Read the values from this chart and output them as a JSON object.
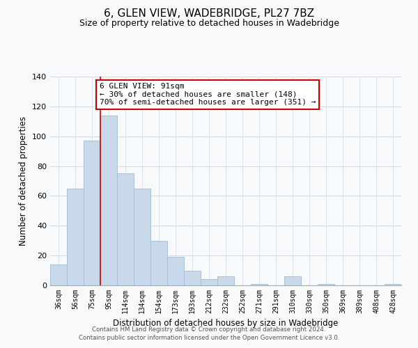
{
  "title": "6, GLEN VIEW, WADEBRIDGE, PL27 7BZ",
  "subtitle": "Size of property relative to detached houses in Wadebridge",
  "xlabel": "Distribution of detached houses by size in Wadebridge",
  "ylabel": "Number of detached properties",
  "bins": [
    "36sqm",
    "56sqm",
    "75sqm",
    "95sqm",
    "114sqm",
    "134sqm",
    "154sqm",
    "173sqm",
    "193sqm",
    "212sqm",
    "232sqm",
    "252sqm",
    "271sqm",
    "291sqm",
    "310sqm",
    "330sqm",
    "350sqm",
    "369sqm",
    "389sqm",
    "408sqm",
    "428sqm"
  ],
  "values": [
    14,
    65,
    97,
    114,
    75,
    65,
    30,
    19,
    10,
    4,
    6,
    0,
    1,
    0,
    6,
    0,
    1,
    0,
    0,
    0,
    1
  ],
  "bar_color": "#c8daea",
  "bar_edge_color": "#aac0d8",
  "property_line_color": "#cc0000",
  "property_line_bin_index": 3,
  "ylim": [
    0,
    140
  ],
  "yticks": [
    0,
    20,
    40,
    60,
    80,
    100,
    120,
    140
  ],
  "annotation_title": "6 GLEN VIEW: 91sqm",
  "annotation_line1": "← 30% of detached houses are smaller (148)",
  "annotation_line2": "70% of semi-detached houses are larger (351) →",
  "annotation_box_facecolor": "#ffffff",
  "annotation_box_edgecolor": "#cc0000",
  "grid_color": "#d0dce8",
  "bg_color": "#f8f9fa",
  "footer1": "Contains HM Land Registry data © Crown copyright and database right 2024.",
  "footer2": "Contains public sector information licensed under the Open Government Licence v3.0."
}
